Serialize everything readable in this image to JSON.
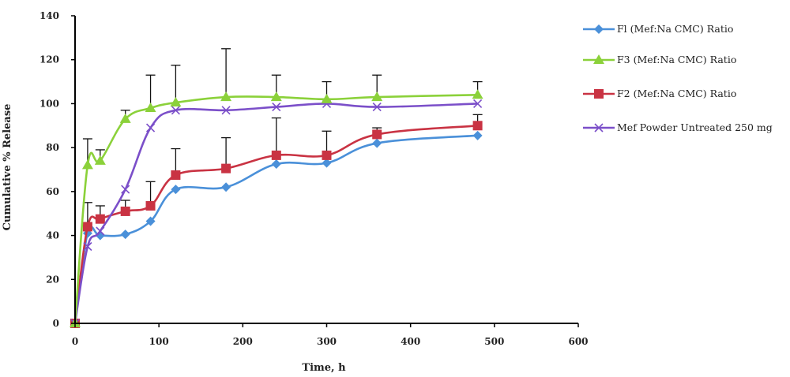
{
  "chart_data": {
    "type": "line",
    "title": "",
    "xlabel": "Time, h",
    "ylabel": "Cumulative % Release",
    "xlim": [
      0,
      600
    ],
    "ylim": [
      0,
      140
    ],
    "xticks": [
      0,
      100,
      200,
      300,
      400,
      500,
      600
    ],
    "yticks": [
      0,
      20,
      40,
      60,
      80,
      100,
      120,
      140
    ],
    "grid": false,
    "legend_position": "right",
    "series": [
      {
        "name": "Fl (Mef:Na CMC) Ratio",
        "color": "#4a90d9",
        "marker": "diamond",
        "x": [
          0,
          15,
          30,
          60,
          90,
          120,
          180,
          240,
          300,
          360,
          480
        ],
        "y": [
          0,
          41,
          40,
          40.5,
          46.5,
          61,
          62,
          72.5,
          73,
          82,
          85.5
        ],
        "error_up": [
          0,
          0,
          0,
          0,
          0,
          0,
          0,
          0,
          0,
          0,
          0
        ]
      },
      {
        "name": "F3 (Mef:Na CMC) Ratio",
        "color": "#8bd13a",
        "marker": "triangle",
        "x": [
          0,
          15,
          30,
          60,
          90,
          120,
          180,
          240,
          300,
          360,
          480
        ],
        "y": [
          0,
          72,
          74,
          93,
          98,
          100.5,
          103,
          103,
          102,
          103,
          104
        ],
        "error_up": [
          0,
          12,
          5,
          4,
          15,
          17,
          22,
          10,
          8,
          10,
          6
        ]
      },
      {
        "name": "F2 (Mef:Na CMC) Ratio",
        "color": "#c93343",
        "marker": "square",
        "x": [
          0,
          15,
          30,
          60,
          90,
          120,
          180,
          240,
          300,
          360,
          480
        ],
        "y": [
          0,
          44,
          47.5,
          51,
          53.5,
          67.5,
          70.5,
          76.5,
          76.5,
          86,
          90
        ],
        "error_up": [
          0,
          11,
          6,
          5,
          11,
          12,
          14,
          17,
          11,
          3,
          5
        ]
      },
      {
        "name": "Mef Powder Untreated 250 mg",
        "color": "#7b4fc9",
        "marker": "x",
        "x": [
          0,
          15,
          30,
          60,
          90,
          120,
          180,
          240,
          300,
          360,
          480
        ],
        "y": [
          0,
          35,
          42,
          61,
          89,
          97,
          97,
          98.5,
          100,
          98.5,
          100
        ],
        "error_up": [
          0,
          0,
          0,
          0,
          0,
          0,
          0,
          0,
          0,
          0,
          0
        ]
      }
    ]
  }
}
